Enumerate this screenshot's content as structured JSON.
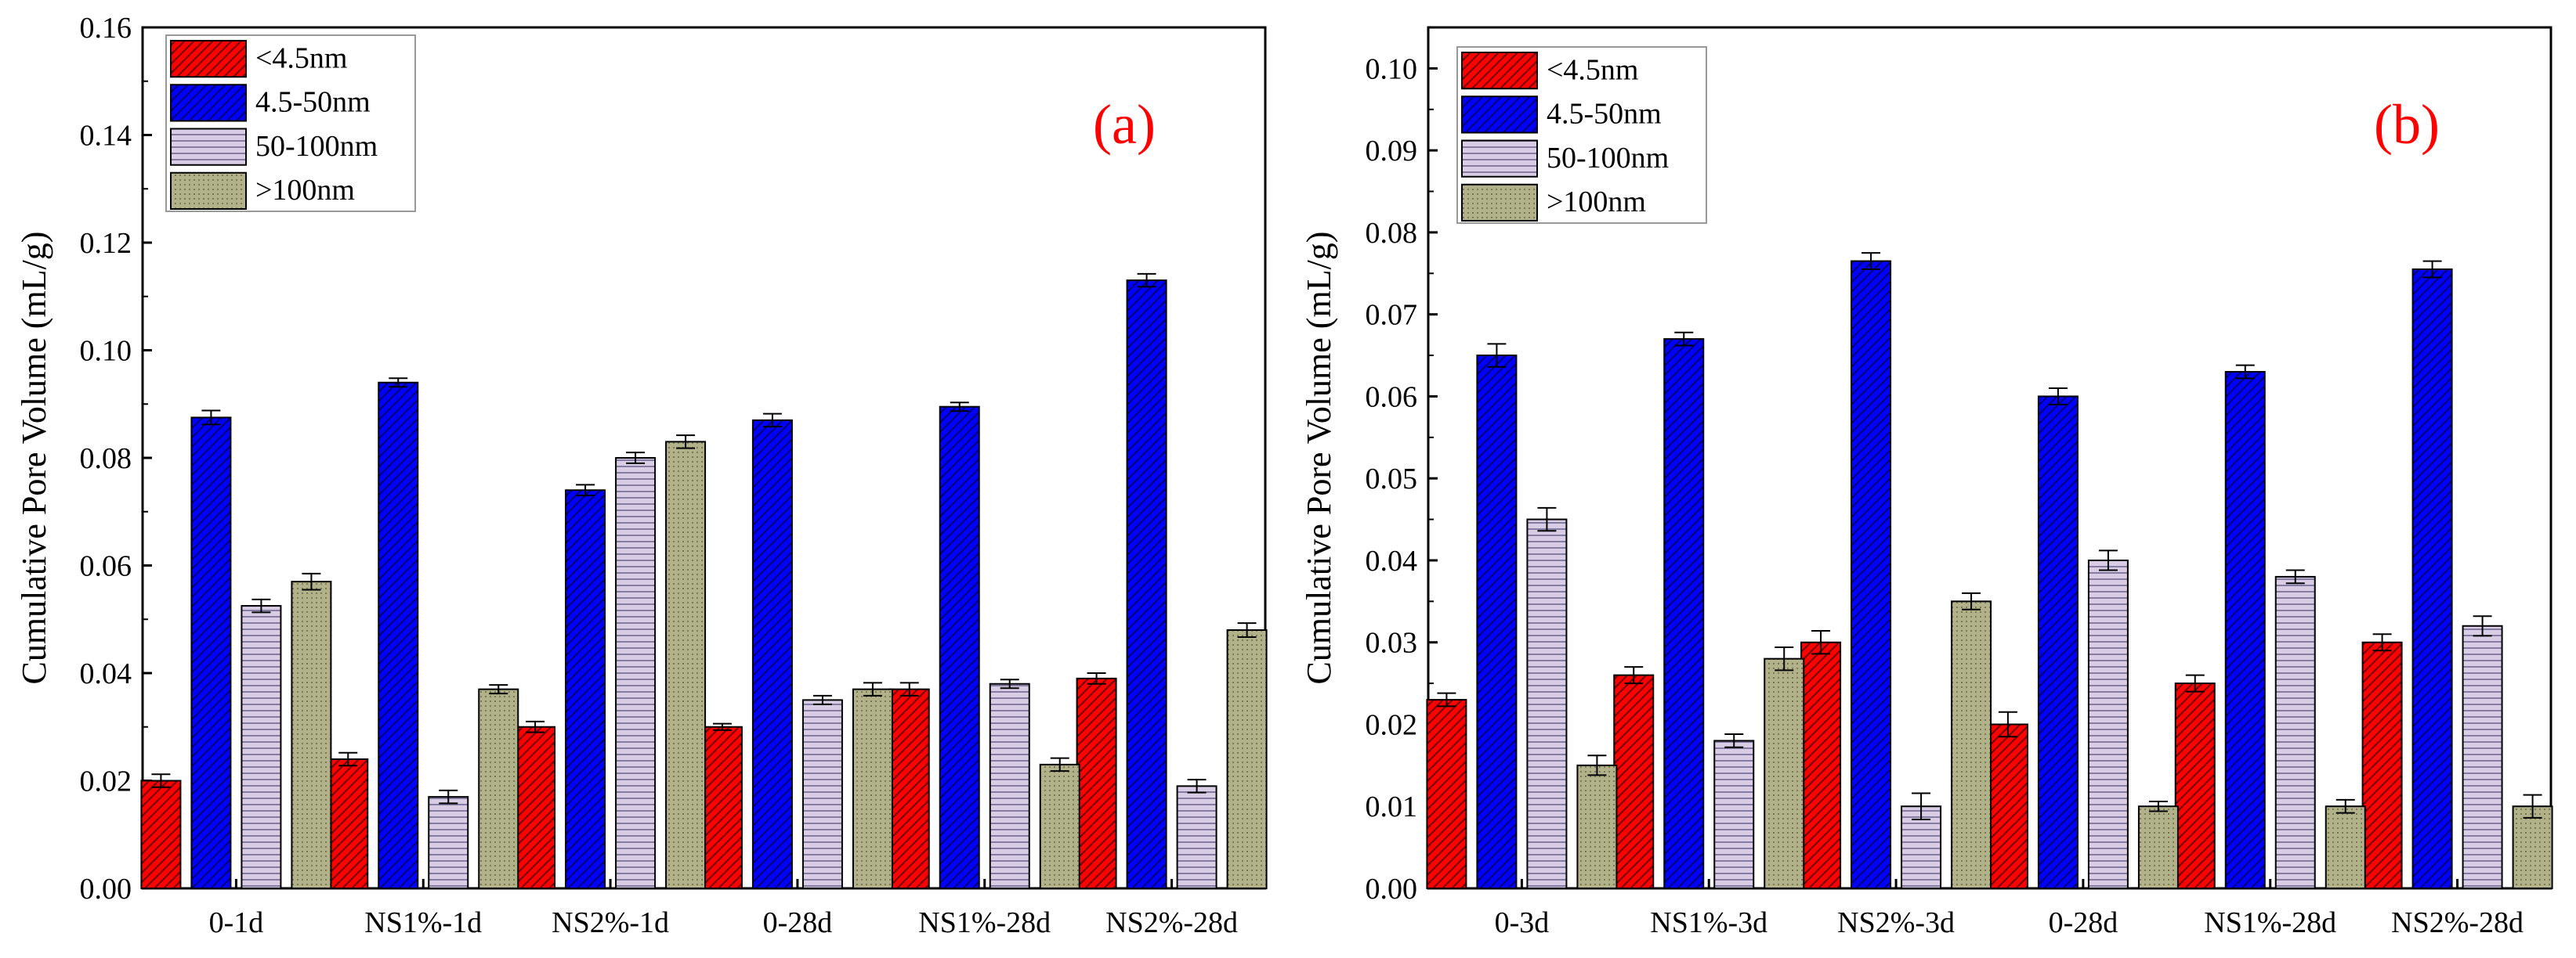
{
  "colors": {
    "series": [
      "#ff0000",
      "#0000ff",
      "#d9cde6",
      "#b2b28a"
    ],
    "panel_label": "#ff0000",
    "axis": "#000000"
  },
  "chart_data": [
    {
      "type": "bar",
      "panel_label": "(a)",
      "ylabel": "Cumulative Pore Volume (mL/g)",
      "xlabel": "",
      "categories": [
        "0-1d",
        "NS1%-1d",
        "NS2%-1d",
        "0-28d",
        "NS1%-28d",
        "NS2%-28d"
      ],
      "ylim": [
        0,
        0.16
      ],
      "yticks": [
        "0.00",
        "0.02",
        "0.04",
        "0.06",
        "0.08",
        "0.10",
        "0.12",
        "0.14",
        "0.16"
      ],
      "legend_position": "top-left",
      "series": [
        {
          "name": "<4.5nm",
          "values": [
            0.02,
            0.024,
            0.03,
            0.03,
            0.037,
            0.039
          ],
          "errors": [
            0.0012,
            0.0012,
            0.001,
            0.0006,
            0.0012,
            0.001
          ]
        },
        {
          "name": "4.5-50nm",
          "values": [
            0.0875,
            0.094,
            0.074,
            0.087,
            0.0895,
            0.113
          ],
          "errors": [
            0.0013,
            0.0008,
            0.001,
            0.0012,
            0.0008,
            0.0012
          ]
        },
        {
          "name": "50-100nm",
          "values": [
            0.0525,
            0.017,
            0.08,
            0.035,
            0.038,
            0.019
          ],
          "errors": [
            0.0012,
            0.0012,
            0.001,
            0.0008,
            0.0008,
            0.0012
          ]
        },
        {
          "name": ">100nm",
          "values": [
            0.057,
            0.037,
            0.083,
            0.037,
            0.023,
            0.048
          ],
          "errors": [
            0.0015,
            0.0008,
            0.0012,
            0.0012,
            0.0012,
            0.0013
          ]
        }
      ]
    },
    {
      "type": "bar",
      "panel_label": "(b)",
      "ylabel": "Cumulative Pore Volume (mL/g)",
      "xlabel": "",
      "categories": [
        "0-3d",
        "NS1%-3d",
        "NS2%-3d",
        "0-28d",
        "NS1%-28d",
        "NS2%-28d"
      ],
      "ylim": [
        0,
        0.105
      ],
      "yticks": [
        "0.00",
        "0.01",
        "0.02",
        "0.03",
        "0.04",
        "0.05",
        "0.06",
        "0.07",
        "0.08",
        "0.09",
        "0.10"
      ],
      "legend_position": "top-left",
      "series": [
        {
          "name": "<4.5nm",
          "values": [
            0.023,
            0.026,
            0.03,
            0.02,
            0.025,
            0.03
          ],
          "errors": [
            0.0008,
            0.001,
            0.0014,
            0.0015,
            0.001,
            0.001
          ]
        },
        {
          "name": "4.5-50nm",
          "values": [
            0.065,
            0.067,
            0.0765,
            0.06,
            0.063,
            0.0755
          ],
          "errors": [
            0.0014,
            0.0008,
            0.001,
            0.001,
            0.0008,
            0.001
          ]
        },
        {
          "name": "50-100nm",
          "values": [
            0.045,
            0.018,
            0.01,
            0.04,
            0.038,
            0.032
          ],
          "errors": [
            0.0014,
            0.0008,
            0.0016,
            0.0012,
            0.0008,
            0.0012
          ]
        },
        {
          "name": ">100nm",
          "values": [
            0.015,
            0.028,
            0.035,
            0.01,
            0.01,
            0.01
          ],
          "errors": [
            0.0012,
            0.0014,
            0.001,
            0.0006,
            0.0008,
            0.0014
          ]
        }
      ]
    }
  ]
}
